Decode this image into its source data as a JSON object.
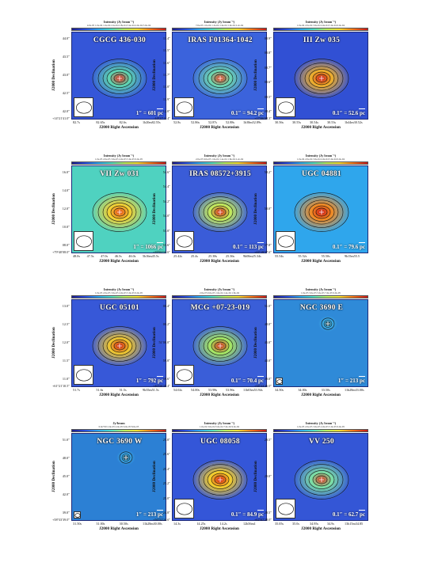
{
  "common": {
    "colorbar_title": "Intensity (Jy beam⁻¹)",
    "ylabel": "J2000 Declination",
    "xlabel": "J2000 Right Ascension"
  },
  "panels": [
    {
      "name": "CGCG 436-030",
      "scale_label": "1″ = 601 pc",
      "cbar_ticks": "4.0e-05  1.0e-04  1.6e-04  2.2e-04  2.8e-04  3.4e-04  4.0e-04  5.0e-04",
      "yticks": [
        "44.0″",
        "43.5″",
        "43.0″",
        "42.5″",
        "42.0″"
      ],
      "xticks": [
        "82.7s",
        "82.65s",
        "82.6s",
        "1h20m82.55s"
      ],
      "origin": "+14°21′41.0″",
      "colors": {
        "bg": "#3556d8",
        "mid": "#5fd7b0",
        "core": "#e02818"
      },
      "beam": "large"
    },
    {
      "name": "IRAS F01364-1042",
      "scale_label": "0.1″ = 94.2 pc",
      "cbar_ticks": "7.0e-05  1.0e-04  1.3e-04  1.6e-04  1.9e-04  2.2e-04",
      "yticks": [
        "11.4″",
        "11.5″",
        "11.6″",
        "11.7″",
        "11.8″",
        "11.9″",
        "12.0″"
      ],
      "xticks": [
        "52.8s",
        "52.86s",
        "52.87s",
        "52.88s",
        "1h38m52.89s"
      ],
      "origin": "-10°27′11.4″",
      "colors": {
        "bg": "#3b63dc",
        "mid": "#6fdab0",
        "core": "#e23a1c"
      },
      "beam": "large"
    },
    {
      "name": "III Zw 035",
      "scale_label": "0.1″ = 52.6 pc",
      "cbar_ticks": "1.0e-04  2.0e-04  3.0e-04  4.0e-04  5.0e-04  6.0e-04",
      "yticks": [
        "08.9″",
        "08.8″",
        "08.7″",
        "08.6″",
        "08.5″",
        "08.4″"
      ],
      "xticks": [
        "30.56s",
        "30.55s",
        "30.54s",
        "30.53s",
        "1h44m30.52s"
      ],
      "origin": "+17°06′08.3″",
      "colors": {
        "bg": "#3150d4",
        "mid": "#f2b028",
        "core": "#c8161a"
      },
      "beam": "large"
    },
    {
      "name": "VII Zw 031",
      "scale_label": "1″ = 1066 pc",
      "cbar_ticks": "1.0e-05  2.0e-05  3.0e-05  4.0e-05  5.0e-05  6.0e-05",
      "yticks": [
        "16.0″",
        "14.0″",
        "12.0″",
        "10.0″",
        "08.0″"
      ],
      "xticks": [
        "48.0s",
        "47.5s",
        "47.0s",
        "46.5s",
        "46.0s",
        "5h16m45.5s"
      ],
      "origin": "+79°40′08.0″",
      "colors": {
        "bg": "#4fd2c0",
        "mid": "#f6d030",
        "core": "#e24818"
      },
      "beam": "large"
    },
    {
      "name": "IRAS 08572+3915",
      "scale_label": "0.1″ = 113 pc",
      "cbar_ticks": "2.0e-05  6.0e-05  1.0e-04  1.4e-04  1.8e-04  2.2e-04",
      "yticks": [
        "54.6″",
        "54.4″",
        "54.2″",
        "54.0″",
        "53.8″",
        "53.6″"
      ],
      "xticks": [
        "25.42s",
        "25.4s",
        "25.38s",
        "25.36s",
        "9h00m25.34s"
      ],
      "origin": "+39°03′53.6″",
      "colors": {
        "bg": "#3a5cd8",
        "mid": "#c7ee58",
        "core": "#d01e16"
      },
      "beam": "large"
    },
    {
      "name": "UGC 04881",
      "scale_label": "0.1″ = 79.6 pc",
      "cbar_ticks": "1.0e-04  2.0e-04  3.0e-04  4.0e-04  5.0e-04  6.0e-04",
      "yticks": [
        "58.2″",
        "58.0″",
        "57.8″"
      ],
      "xticks": [
        "55.54s",
        "55.52s",
        "55.50s",
        "9h15m55.5"
      ],
      "origin": "+44°19′57.6″",
      "colors": {
        "bg": "#2fa6ec",
        "mid": "#f58a20",
        "core": "#c81818"
      },
      "beam": "large"
    },
    {
      "name": "UGC 05101",
      "scale_label": "1″ = 792 pc",
      "cbar_ticks": "1.0e-05  2.0e-05  3.0e-05  4.0e-05  5.0e-05  6.0e-05",
      "yticks": [
        "13.0″",
        "12.5″",
        "12.0″",
        "11.5″",
        "11.0″"
      ],
      "xticks": [
        "51.7s",
        "51.6s",
        "51.5s",
        "9h35m51.5s"
      ],
      "origin": "+61°21′10.5″",
      "colors": {
        "bg": "#3758d8",
        "mid": "#f2c82c",
        "core": "#c81a14"
      },
      "beam": "large"
    },
    {
      "name": "MCG +07-23-019",
      "scale_label": "0.1″ = 70.4 pc",
      "cbar_ticks": "2.0e-05  6.0e-05  1.0e-04  1.4e-04  1.8e-04",
      "yticks": [
        "00.4″",
        "00.2″",
        "51′00.0″",
        "59.8″",
        "59.6″"
      ],
      "xticks": [
        "54.02s",
        "54.00s",
        "53.98s",
        "53.96s",
        "11h03m53.94s"
      ],
      "origin": "+40°50′59.4″",
      "colors": {
        "bg": "#3a5ed8",
        "mid": "#a8ea60",
        "core": "#d02418"
      },
      "beam": "large"
    },
    {
      "name": "NGC 3690 E",
      "scale_label": "1″ = 213 pc",
      "cbar_ticks": "1.0e-05  3.0e-05  5.0e-05  7.0e-05  9.0e-05",
      "yticks": [
        "51.0″",
        "48.0″",
        "45.0″",
        "42.0″",
        "39.0″"
      ],
      "xticks": [
        "34.50s",
        "34.00s",
        "33.50s",
        "11h28m33.00s"
      ],
      "origin": "+58°33′36.0″",
      "colors": {
        "bg": "#2f8ad8",
        "mid": "#3fb4e8",
        "core": "#1c1c1c"
      },
      "beam": "small"
    },
    {
      "name": "NGC 3690 W",
      "scale_label": "1″ = 213 pc",
      "cbar_ticks": "0.0e+00  2.0e-05  4.0e-05  6.0e-05  8.0e-05",
      "yticks": [
        "51.0″",
        "48.0″",
        "45.0″",
        "42.0″",
        "39.0″"
      ],
      "xticks": [
        "31.50s",
        "31.00s",
        "30.50s",
        "11h28m30.00s"
      ],
      "origin": "+58°33′39.0″",
      "colors": {
        "bg": "#2c80d4",
        "mid": "#3aace6",
        "core": "#1c1c1c"
      },
      "beam": "small",
      "cbar_title": "Jy/beam"
    },
    {
      "name": "UGC 08058",
      "scale_label": "0.1″ = 84.9 pc",
      "cbar_ticks": "1.0e-04  3.0e-04  5.0e-04  7.0e-04  9.0e-04",
      "yticks": [
        "25.8″",
        "25.6″",
        "25.4″",
        "25.2″",
        "25.0″",
        "24.8″"
      ],
      "xticks": [
        "14.3s",
        "14.25s",
        "14.2s",
        "12h56m1"
      ],
      "origin": "+56°52′24.6″",
      "colors": {
        "bg": "#3456d8",
        "mid": "#f8d028",
        "core": "#d01a14"
      },
      "beam": "large"
    },
    {
      "name": "VV 250",
      "scale_label": "0.1″ = 62.7 pc",
      "cbar_ticks": "1.0e-05  2.0e-05  3.0e-05  4.0e-05  5.0e-05  6.0e-05",
      "yticks": [
        "29.5″",
        "29.0″",
        "28.5″"
      ],
      "xticks": [
        "35.05s",
        "35.0s",
        "34.95s",
        "34.9s",
        "13h15m34.85"
      ],
      "origin": "+62°07′28.0″",
      "colors": {
        "bg": "#3456d6",
        "mid": "#7ee2a4",
        "core": "#d83018"
      },
      "beam": "large"
    }
  ]
}
